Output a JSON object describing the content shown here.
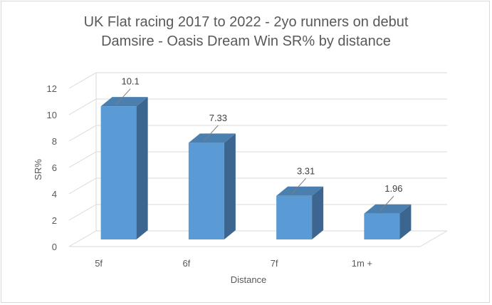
{
  "chart_data": {
    "type": "bar",
    "title": "UK Flat racing 2017 to 2022 - 2yo runners on debut",
    "subtitle": "Damsire - Oasis Dream Win SR% by distance",
    "xlabel": "Distance",
    "ylabel": "SR%",
    "categories": [
      "5f",
      "6f",
      "7f",
      "1m +"
    ],
    "values": [
      10.1,
      7.33,
      3.31,
      1.96
    ],
    "data_labels": [
      "10.1",
      "7.33",
      "3.31",
      "1.96"
    ],
    "yticks": [
      "0",
      "2",
      "4",
      "6",
      "8",
      "10",
      "12"
    ],
    "ylim": [
      0,
      12
    ],
    "grid": true,
    "style": "3d-column",
    "colors": {
      "bar_front": "#5b9bd5",
      "bar_top": "#4a7fb0",
      "bar_side": "#3c6690",
      "grid": "#d9d9d9",
      "text": "#595959"
    }
  }
}
